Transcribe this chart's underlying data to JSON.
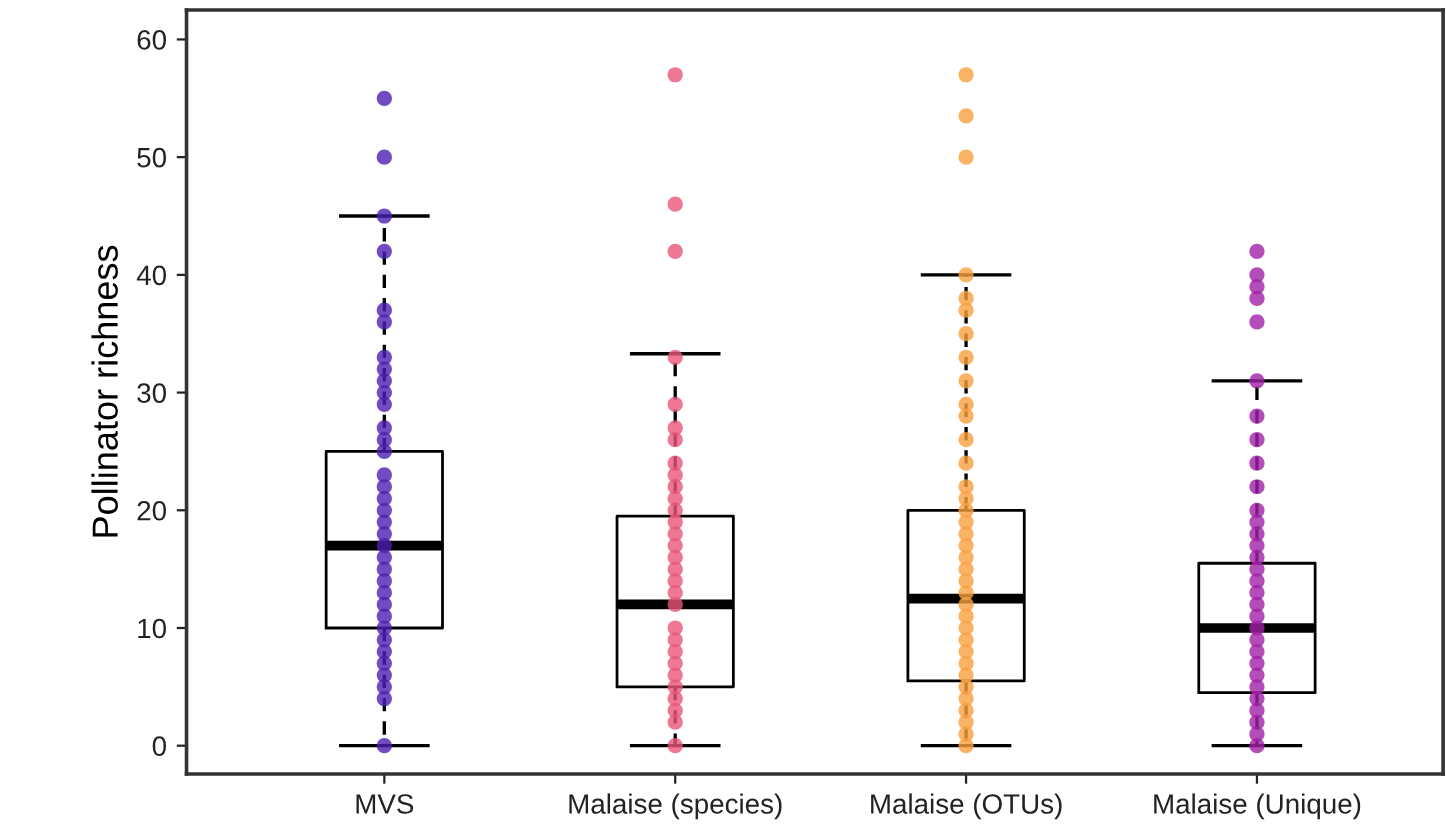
{
  "chart_data": {
    "type": "box",
    "ylabel": "Pollinator richness",
    "categories": [
      "MVS",
      "Malaise (species)",
      "Malaise (OTUs)",
      "Malaise (Unique)"
    ],
    "boxes": [
      {
        "low": 0,
        "q1": 10,
        "median": 17,
        "q3": 25,
        "high": 45
      },
      {
        "low": 0,
        "q1": 5,
        "median": 12,
        "q3": 19.5,
        "high": 33.3
      },
      {
        "low": 0,
        "q1": 5.5,
        "median": 12.5,
        "q3": 20,
        "high": 40
      },
      {
        "low": 0,
        "q1": 4.5,
        "median": 10,
        "q3": 15.5,
        "high": 31
      }
    ],
    "ylim": [
      -2.4,
      62.5
    ],
    "yticks": [
      0,
      10,
      20,
      30,
      40,
      50,
      60
    ],
    "grid": false,
    "legend": false,
    "marker": "circle",
    "series": [
      {
        "type": "scatter",
        "color": "#4b1fb0",
        "x": [
          "MVS",
          "MVS",
          "MVS",
          "MVS",
          "MVS",
          "MVS",
          "MVS",
          "MVS",
          "MVS",
          "MVS",
          "MVS",
          "MVS",
          "MVS",
          "MVS",
          "MVS",
          "MVS",
          "MVS",
          "MVS",
          "MVS",
          "MVS",
          "MVS",
          "MVS",
          "MVS",
          "MVS",
          "MVS",
          "MVS",
          "MVS",
          "MVS",
          "MVS",
          "MVS",
          "MVS",
          "MVS",
          "MVS",
          "MVS",
          "MVS"
        ],
        "values": [
          0,
          4,
          5,
          6,
          7,
          8,
          9,
          10,
          11,
          12,
          13,
          14,
          15,
          16,
          17,
          18,
          19,
          20,
          21,
          22,
          23,
          25,
          26,
          27,
          29,
          30,
          31,
          32,
          33,
          36,
          37,
          42,
          45,
          50,
          55
        ]
      },
      {
        "type": "scatter",
        "color": "#e8557a",
        "x": [
          "Malaise (species)",
          "Malaise (species)",
          "Malaise (species)",
          "Malaise (species)",
          "Malaise (species)",
          "Malaise (species)",
          "Malaise (species)",
          "Malaise (species)",
          "Malaise (species)",
          "Malaise (species)",
          "Malaise (species)",
          "Malaise (species)",
          "Malaise (species)",
          "Malaise (species)",
          "Malaise (species)",
          "Malaise (species)",
          "Malaise (species)",
          "Malaise (species)",
          "Malaise (species)",
          "Malaise (species)",
          "Malaise (species)",
          "Malaise (species)",
          "Malaise (species)",
          "Malaise (species)",
          "Malaise (species)",
          "Malaise (species)",
          "Malaise (species)",
          "Malaise (species)",
          "Malaise (species)",
          "Malaise (species)"
        ],
        "values": [
          0,
          2,
          3,
          4,
          5,
          6,
          7,
          8,
          9,
          10,
          12,
          13,
          14,
          15,
          16,
          17,
          18,
          19,
          20,
          21,
          22,
          23,
          24,
          26,
          27,
          29,
          33,
          42,
          46,
          57
        ]
      },
      {
        "type": "scatter",
        "color": "#f9a03f",
        "x": [
          "Malaise (OTUs)",
          "Malaise (OTUs)",
          "Malaise (OTUs)",
          "Malaise (OTUs)",
          "Malaise (OTUs)",
          "Malaise (OTUs)",
          "Malaise (OTUs)",
          "Malaise (OTUs)",
          "Malaise (OTUs)",
          "Malaise (OTUs)",
          "Malaise (OTUs)",
          "Malaise (OTUs)",
          "Malaise (OTUs)",
          "Malaise (OTUs)",
          "Malaise (OTUs)",
          "Malaise (OTUs)",
          "Malaise (OTUs)",
          "Malaise (OTUs)",
          "Malaise (OTUs)",
          "Malaise (OTUs)",
          "Malaise (OTUs)",
          "Malaise (OTUs)",
          "Malaise (OTUs)",
          "Malaise (OTUs)",
          "Malaise (OTUs)",
          "Malaise (OTUs)",
          "Malaise (OTUs)",
          "Malaise (OTUs)",
          "Malaise (OTUs)",
          "Malaise (OTUs)",
          "Malaise (OTUs)",
          "Malaise (OTUs)",
          "Malaise (OTUs)",
          "Malaise (OTUs)",
          "Malaise (OTUs)",
          "Malaise (OTUs)"
        ],
        "values": [
          0,
          1,
          2,
          3,
          4,
          5,
          6,
          7,
          8,
          9,
          10,
          11,
          12,
          13,
          14,
          15,
          16,
          17,
          18,
          19,
          20,
          21,
          22,
          24,
          26,
          28,
          29,
          31,
          33,
          35,
          37,
          38,
          40,
          50,
          53.5,
          57
        ]
      },
      {
        "type": "scatter",
        "color": "#a020a8",
        "x": [
          "Malaise (Unique)",
          "Malaise (Unique)",
          "Malaise (Unique)",
          "Malaise (Unique)",
          "Malaise (Unique)",
          "Malaise (Unique)",
          "Malaise (Unique)",
          "Malaise (Unique)",
          "Malaise (Unique)",
          "Malaise (Unique)",
          "Malaise (Unique)",
          "Malaise (Unique)",
          "Malaise (Unique)",
          "Malaise (Unique)",
          "Malaise (Unique)",
          "Malaise (Unique)",
          "Malaise (Unique)",
          "Malaise (Unique)",
          "Malaise (Unique)",
          "Malaise (Unique)",
          "Malaise (Unique)",
          "Malaise (Unique)",
          "Malaise (Unique)",
          "Malaise (Unique)",
          "Malaise (Unique)",
          "Malaise (Unique)",
          "Malaise (Unique)",
          "Malaise (Unique)",
          "Malaise (Unique)",
          "Malaise (Unique)",
          "Malaise (Unique)"
        ],
        "values": [
          0,
          1,
          2,
          3,
          4,
          5,
          6,
          7,
          8,
          9,
          10,
          11,
          12,
          13,
          14,
          15,
          16,
          17,
          18,
          19,
          20,
          22,
          24,
          26,
          28,
          31,
          36,
          38,
          39,
          40,
          42
        ]
      }
    ]
  }
}
